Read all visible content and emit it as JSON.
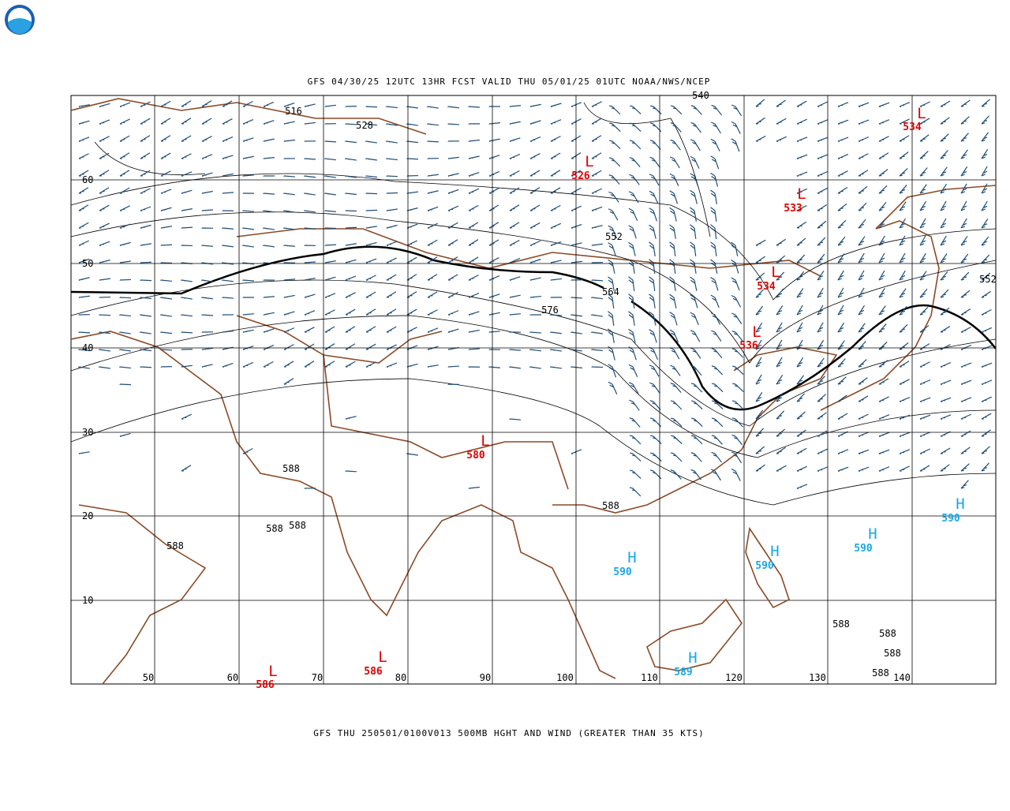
{
  "header": {
    "title": "GFS 04/30/25 12UTC 13HR FCST VALID THU 05/01/25 01UTC NOAA/NWS/NCEP"
  },
  "footer": {
    "caption": "GFS THU 250501/0100V013 500MB HGHT AND WIND (GREATER THAN 35 KTS)"
  },
  "map": {
    "lat_labels": [
      "60",
      "50",
      "40",
      "30",
      "20",
      "10"
    ],
    "lon_labels": [
      "50",
      "60",
      "70",
      "80",
      "90",
      "100",
      "110",
      "120",
      "130",
      "140"
    ],
    "contour_labels": [
      "516",
      "528",
      "540",
      "552",
      "564",
      "576",
      "588",
      "588",
      "588",
      "588",
      "588",
      "588",
      "588",
      "588",
      "588",
      "552"
    ],
    "lows": [
      {
        "symbol": "L",
        "value": "526"
      },
      {
        "symbol": "L",
        "value": "533"
      },
      {
        "symbol": "L",
        "value": "534"
      },
      {
        "symbol": "L",
        "value": "536"
      },
      {
        "symbol": "L",
        "value": "534"
      },
      {
        "symbol": "L",
        "value": "580"
      },
      {
        "symbol": "L",
        "value": "586"
      },
      {
        "symbol": "L",
        "value": "586"
      }
    ],
    "highs": [
      {
        "symbol": "H",
        "value": "590"
      },
      {
        "symbol": "H",
        "value": "590"
      },
      {
        "symbol": "H",
        "value": "590"
      },
      {
        "symbol": "H",
        "value": "590"
      },
      {
        "symbol": "H",
        "value": "589"
      }
    ]
  }
}
